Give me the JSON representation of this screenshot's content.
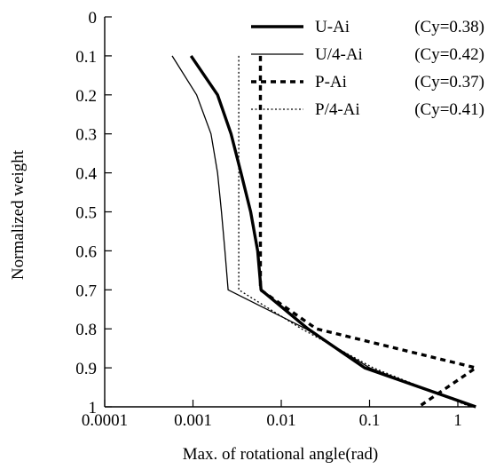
{
  "chart_data": {
    "type": "line",
    "title": "",
    "xlabel": "Max. of rotational angle(rad)",
    "ylabel": "Normalized weight",
    "x_scale": "log",
    "xlim": [
      0.0001,
      1
    ],
    "ylim": [
      0,
      1
    ],
    "y_inverted": true,
    "grid": false,
    "legend_position": "top-right",
    "x_ticks": [
      {
        "value": 0.0001,
        "label": "0.0001"
      },
      {
        "value": 0.001,
        "label": "0.001"
      },
      {
        "value": 0.01,
        "label": "0.01"
      },
      {
        "value": 0.1,
        "label": "0.1"
      },
      {
        "value": 1,
        "label": "1"
      }
    ],
    "y_ticks": [
      {
        "value": 0,
        "label": "0"
      },
      {
        "value": 0.1,
        "label": "0.1"
      },
      {
        "value": 0.2,
        "label": "0.2"
      },
      {
        "value": 0.3,
        "label": "0.3"
      },
      {
        "value": 0.4,
        "label": "0.4"
      },
      {
        "value": 0.5,
        "label": "0.5"
      },
      {
        "value": 0.6,
        "label": "0.6"
      },
      {
        "value": 0.7,
        "label": "0.7"
      },
      {
        "value": 0.8,
        "label": "0.8"
      },
      {
        "value": 0.9,
        "label": "0.9"
      },
      {
        "value": 1,
        "label": "1"
      }
    ],
    "series": [
      {
        "name": "U-Ai",
        "legend_suffix": "(Cy=0.38)",
        "style": "thick-solid",
        "color": "#000000",
        "points": [
          {
            "x": 0.00095,
            "y": 0.1
          },
          {
            "x": 0.0019,
            "y": 0.2
          },
          {
            "x": 0.0027,
            "y": 0.3
          },
          {
            "x": 0.0035,
            "y": 0.4
          },
          {
            "x": 0.0045,
            "y": 0.5
          },
          {
            "x": 0.0054,
            "y": 0.6
          },
          {
            "x": 0.0059,
            "y": 0.7
          },
          {
            "x": 0.02,
            "y": 0.8
          },
          {
            "x": 0.088,
            "y": 0.9
          },
          {
            "x": 1.6,
            "y": 1.0
          }
        ]
      },
      {
        "name": "U/4-Ai",
        "legend_suffix": "(Cy=0.42)",
        "style": "thin-solid",
        "color": "#000000",
        "points": [
          {
            "x": 0.00058,
            "y": 0.1
          },
          {
            "x": 0.0011,
            "y": 0.2
          },
          {
            "x": 0.0016,
            "y": 0.3
          },
          {
            "x": 0.0019,
            "y": 0.4
          },
          {
            "x": 0.0021,
            "y": 0.5
          },
          {
            "x": 0.0023,
            "y": 0.6
          },
          {
            "x": 0.0025,
            "y": 0.7
          },
          {
            "x": 0.019,
            "y": 0.8
          },
          {
            "x": 0.1,
            "y": 0.9
          },
          {
            "x": 1.45,
            "y": 1.0
          }
        ]
      },
      {
        "name": "P-Ai",
        "legend_suffix": "(Cy=0.37)",
        "style": "thick-dashed",
        "color": "#000000",
        "points": [
          {
            "x": 0.0058,
            "y": 0.1
          },
          {
            "x": 0.0058,
            "y": 0.2
          },
          {
            "x": 0.0058,
            "y": 0.3
          },
          {
            "x": 0.0058,
            "y": 0.4
          },
          {
            "x": 0.0058,
            "y": 0.5
          },
          {
            "x": 0.0058,
            "y": 0.6
          },
          {
            "x": 0.0058,
            "y": 0.7
          },
          {
            "x": 0.025,
            "y": 0.8
          },
          {
            "x": 1.6,
            "y": 0.9
          },
          {
            "x": 0.36,
            "y": 1.0
          }
        ]
      },
      {
        "name": "P/4-Ai",
        "legend_suffix": "(Cy=0.41)",
        "style": "thin-dotted",
        "color": "#000000",
        "points": [
          {
            "x": 0.0033,
            "y": 0.1
          },
          {
            "x": 0.0033,
            "y": 0.2
          },
          {
            "x": 0.0033,
            "y": 0.3
          },
          {
            "x": 0.0033,
            "y": 0.4
          },
          {
            "x": 0.0033,
            "y": 0.5
          },
          {
            "x": 0.0033,
            "y": 0.6
          },
          {
            "x": 0.0033,
            "y": 0.7
          },
          {
            "x": 0.017,
            "y": 0.8
          },
          {
            "x": 0.11,
            "y": 0.9
          },
          {
            "x": 1.4,
            "y": 1.0
          }
        ]
      }
    ]
  }
}
